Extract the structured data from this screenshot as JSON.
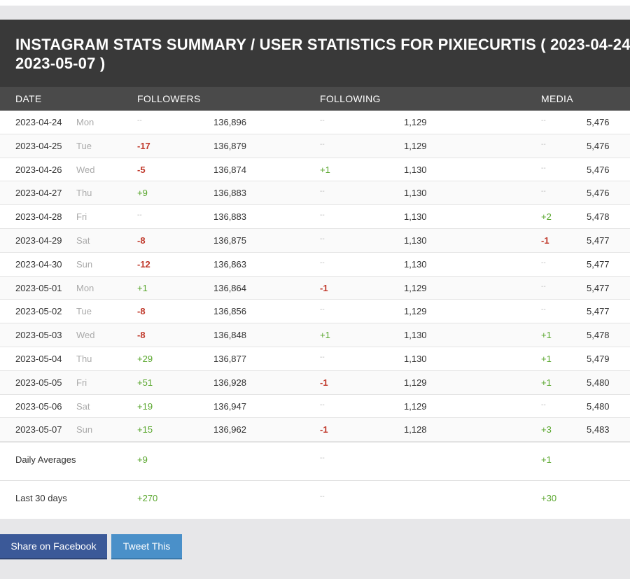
{
  "title": "INSTAGRAM STATS SUMMARY / USER STATISTICS FOR PIXIECURTIS ( 2023-04-24 - 2023-05-07 )",
  "columns": [
    "DATE",
    "FOLLOWERS",
    "FOLLOWING",
    "MEDIA"
  ],
  "rows": [
    {
      "date": "2023-04-24",
      "day": "Mon",
      "fd": "--",
      "fv": "136,896",
      "gd": "--",
      "gv": "1,129",
      "md": "--",
      "mv": "5,476"
    },
    {
      "date": "2023-04-25",
      "day": "Tue",
      "fd": "-17",
      "fv": "136,879",
      "gd": "--",
      "gv": "1,129",
      "md": "--",
      "mv": "5,476"
    },
    {
      "date": "2023-04-26",
      "day": "Wed",
      "fd": "-5",
      "fv": "136,874",
      "gd": "+1",
      "gv": "1,130",
      "md": "--",
      "mv": "5,476"
    },
    {
      "date": "2023-04-27",
      "day": "Thu",
      "fd": "+9",
      "fv": "136,883",
      "gd": "--",
      "gv": "1,130",
      "md": "--",
      "mv": "5,476"
    },
    {
      "date": "2023-04-28",
      "day": "Fri",
      "fd": "--",
      "fv": "136,883",
      "gd": "--",
      "gv": "1,130",
      "md": "+2",
      "mv": "5,478"
    },
    {
      "date": "2023-04-29",
      "day": "Sat",
      "fd": "-8",
      "fv": "136,875",
      "gd": "--",
      "gv": "1,130",
      "md": "-1",
      "mv": "5,477"
    },
    {
      "date": "2023-04-30",
      "day": "Sun",
      "fd": "-12",
      "fv": "136,863",
      "gd": "--",
      "gv": "1,130",
      "md": "--",
      "mv": "5,477"
    },
    {
      "date": "2023-05-01",
      "day": "Mon",
      "fd": "+1",
      "fv": "136,864",
      "gd": "-1",
      "gv": "1,129",
      "md": "--",
      "mv": "5,477"
    },
    {
      "date": "2023-05-02",
      "day": "Tue",
      "fd": "-8",
      "fv": "136,856",
      "gd": "--",
      "gv": "1,129",
      "md": "--",
      "mv": "5,477"
    },
    {
      "date": "2023-05-03",
      "day": "Wed",
      "fd": "-8",
      "fv": "136,848",
      "gd": "+1",
      "gv": "1,130",
      "md": "+1",
      "mv": "5,478"
    },
    {
      "date": "2023-05-04",
      "day": "Thu",
      "fd": "+29",
      "fv": "136,877",
      "gd": "--",
      "gv": "1,130",
      "md": "+1",
      "mv": "5,479"
    },
    {
      "date": "2023-05-05",
      "day": "Fri",
      "fd": "+51",
      "fv": "136,928",
      "gd": "-1",
      "gv": "1,129",
      "md": "+1",
      "mv": "5,480"
    },
    {
      "date": "2023-05-06",
      "day": "Sat",
      "fd": "+19",
      "fv": "136,947",
      "gd": "--",
      "gv": "1,129",
      "md": "--",
      "mv": "5,480"
    },
    {
      "date": "2023-05-07",
      "day": "Sun",
      "fd": "+15",
      "fv": "136,962",
      "gd": "-1",
      "gv": "1,128",
      "md": "+3",
      "mv": "5,483"
    }
  ],
  "summary": [
    {
      "label": "Daily Averages",
      "followers": "+9",
      "following": "--",
      "media": "+1"
    },
    {
      "label": "Last 30 days",
      "followers": "+270",
      "following": "--",
      "media": "+30"
    }
  ],
  "buttons": {
    "facebook": "Share on Facebook",
    "twitter": "Tweet This"
  },
  "colors": {
    "header_bg": "#393939",
    "subheader_bg": "#4a4a4a",
    "positive": "#5aa72e",
    "negative": "#c0392b",
    "facebook": "#3b5998",
    "twitter": "#4a90c9"
  }
}
